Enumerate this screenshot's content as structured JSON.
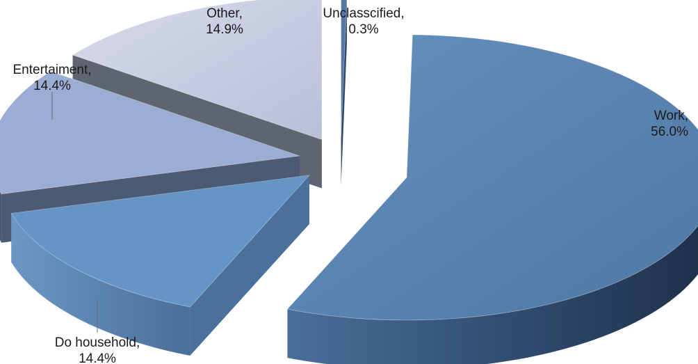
{
  "chart_data": {
    "type": "pie",
    "style": "3d-exploded",
    "title": "",
    "legend": "none",
    "slices": [
      {
        "label": "Work",
        "value": 56.0,
        "display": "56.0%",
        "top_color": "#5a84b0",
        "side_color": "#2b4566"
      },
      {
        "label": "Do household",
        "value": 14.4,
        "display": "14.4%",
        "top_color": "#6595c7",
        "side_color": "#4a719c"
      },
      {
        "label": "Entertaiment",
        "value": 14.4,
        "display": "14.4%",
        "top_color": "#9badd2",
        "side_color": "#4d5a73"
      },
      {
        "label": "Other",
        "value": 14.9,
        "display": "14.9%",
        "top_color": "#c9cde2",
        "side_color": "#5f6570"
      },
      {
        "label": "Unclasscified",
        "value": 0.3,
        "display": "0.3%",
        "top_color": "#5478a3",
        "side_color": "#2f4a6c"
      }
    ]
  }
}
